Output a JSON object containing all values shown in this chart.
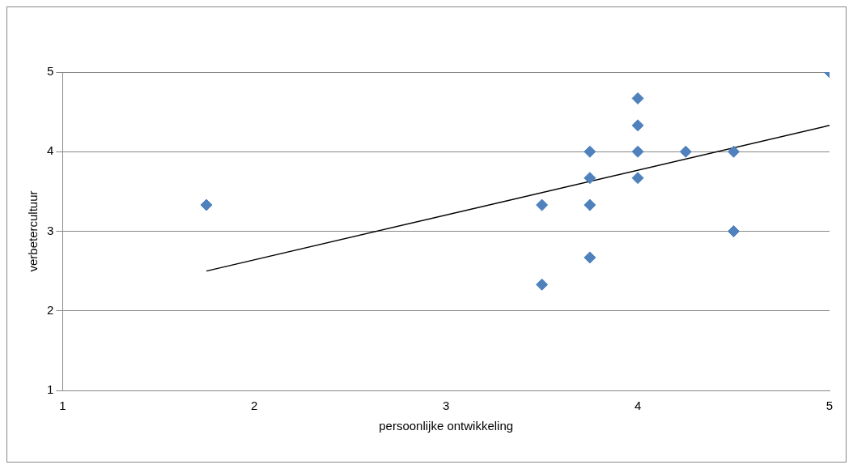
{
  "chart_data": {
    "type": "scatter",
    "xlabel": "persoonlijke ontwikkeling",
    "ylabel": "verbetercultuur",
    "xlim": [
      1,
      5
    ],
    "xticks": [
      1,
      2,
      3,
      4,
      5
    ],
    "ylim": [
      1,
      5
    ],
    "yticks": [
      1,
      2,
      3,
      4,
      5
    ],
    "grid": "y",
    "legend": false,
    "marker": "diamond",
    "series": [
      {
        "color": "#4f81bd",
        "x": [
          1.75,
          3.5,
          3.5,
          3.75,
          3.75,
          3.75,
          3.75,
          4,
          4,
          4,
          4,
          4.25,
          4.5,
          4.5,
          5
        ],
        "values": [
          3.33,
          3.33,
          2.33,
          4,
          3.67,
          3.33,
          2.67,
          4.67,
          4.33,
          4,
          3.67,
          4,
          4,
          3,
          5
        ]
      },
      {
        "type": "line",
        "color": "#000000",
        "marker": "none",
        "x": [
          1.75,
          5
        ],
        "values": [
          2.5,
          4.33
        ]
      }
    ]
  }
}
